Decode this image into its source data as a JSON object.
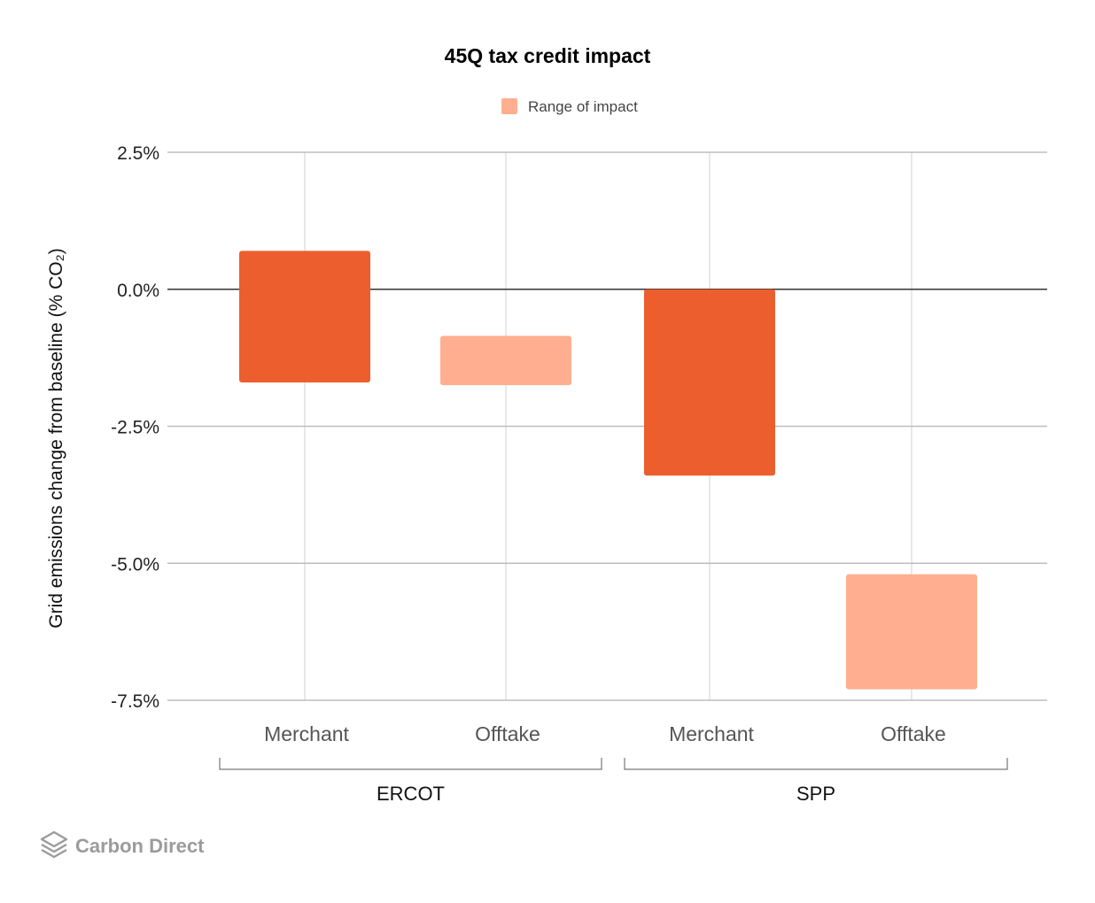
{
  "chart_data": {
    "type": "bar",
    "title": "45Q tax credit impact",
    "legend": [
      {
        "label": "Range of impact",
        "color": "#FFAF90"
      }
    ],
    "legend_position": "top-center",
    "ylabel": "Grid emissions change from baseline (% CO₂)",
    "ylim": [
      -7.5,
      2.5
    ],
    "yticks": [
      2.5,
      0.0,
      -2.5,
      -5.0,
      -7.5
    ],
    "ytick_labels": [
      "2.5%",
      "0.0%",
      "-2.5%",
      "-5.0%",
      "-7.5%"
    ],
    "grid": true,
    "groups": [
      {
        "label": "ERCOT",
        "categories": [
          0,
          1
        ]
      },
      {
        "label": "SPP",
        "categories": [
          2,
          3
        ]
      }
    ],
    "categories": [
      "Merchant",
      "Offtake",
      "Merchant",
      "Offtake"
    ],
    "ranges": [
      {
        "low": -1.7,
        "high": 0.7,
        "color": "#EC5E2D"
      },
      {
        "low": -1.75,
        "high": -0.85,
        "color": "#FFAF90"
      },
      {
        "low": -3.4,
        "high": 0.0,
        "color": "#EC5E2D"
      },
      {
        "low": -7.3,
        "high": -5.2,
        "color": "#FFAF90"
      }
    ]
  },
  "branding": {
    "logo_text": "Carbon Direct"
  }
}
